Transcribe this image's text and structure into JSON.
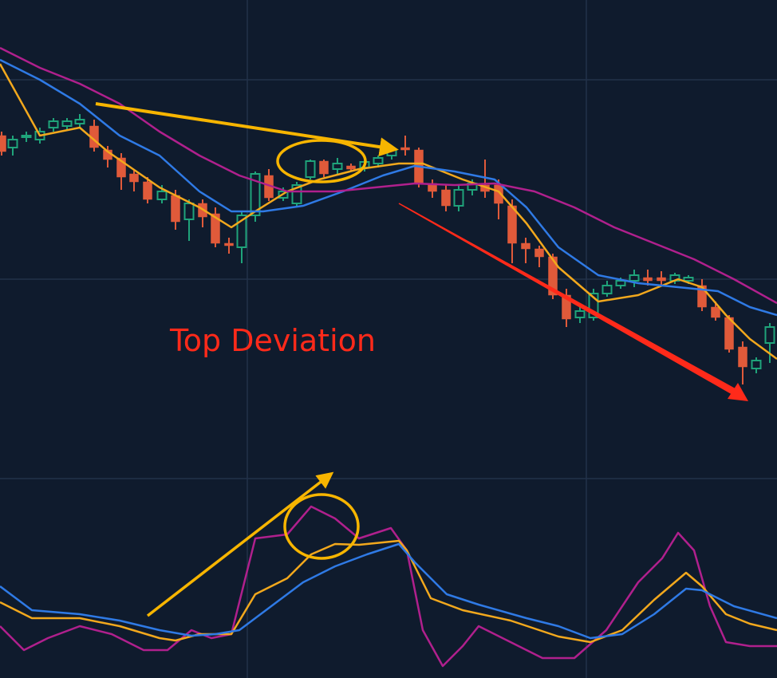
{
  "chart_data": [
    {
      "type": "candlestick",
      "annotation": "Top Deviation",
      "xlim": [
        0,
        974
      ],
      "ylim": [
        0,
        56
      ],
      "up_color": "#1fa37a",
      "down_color": "#e05a3a",
      "x": [
        2,
        16,
        33,
        50,
        67,
        84,
        100,
        118,
        135,
        152,
        168,
        185,
        203,
        220,
        237,
        254,
        270,
        287,
        303,
        320,
        337,
        355,
        372,
        389,
        406,
        423,
        440,
        457,
        474,
        491,
        508,
        525,
        542,
        559,
        575,
        592,
        608,
        625,
        642,
        659,
        676,
        693,
        710,
        727,
        744,
        761,
        778,
        795,
        812,
        829,
        846,
        863,
        880,
        897,
        914,
        931,
        948,
        965
      ],
      "open": [
        39,
        37.5,
        38.8,
        38.5,
        40,
        40.2,
        40.5,
        40.2,
        37.2,
        36.2,
        34.2,
        33.2,
        31,
        31.5,
        28.5,
        30.5,
        29.2,
        25.5,
        25,
        29,
        34,
        31.2,
        30.5,
        33.8,
        35.8,
        34.8,
        35.2,
        35,
        35.5,
        36.5,
        37.5,
        37.2,
        33,
        32.2,
        30.2,
        32.2,
        32.8,
        32.8,
        30.2,
        25.5,
        24.8,
        23.8,
        19,
        16.2,
        16.2,
        19.2,
        20.2,
        20.8,
        21.2,
        21.2,
        20.8,
        20.8,
        20.2,
        17.5,
        16.2,
        12.5,
        9.8,
        13
      ],
      "close": [
        37,
        38.5,
        39,
        39.5,
        40.8,
        40.8,
        41,
        37.5,
        36,
        33.8,
        33.2,
        31,
        32,
        28.2,
        30.5,
        28.8,
        25.5,
        25.2,
        29,
        34.2,
        31.2,
        32,
        32.8,
        35.8,
        34.2,
        35.5,
        34.8,
        35.7,
        36.2,
        37.2,
        37.2,
        33,
        32,
        30.2,
        32.2,
        33,
        32,
        30.5,
        25.5,
        24.8,
        23.8,
        19,
        16,
        17,
        19.2,
        20.2,
        20.8,
        21.5,
        20.8,
        20.8,
        21.5,
        21.2,
        17.5,
        16.2,
        12.2,
        10,
        10.8,
        15
      ],
      "high": [
        39.5,
        39,
        39.5,
        40,
        41.2,
        41.2,
        41.7,
        41,
        37.7,
        36.8,
        34.8,
        33.8,
        32.8,
        32.2,
        31,
        31,
        30,
        26.2,
        29.5,
        34.5,
        34.8,
        32.5,
        33.2,
        36,
        36,
        36.2,
        35.5,
        36.2,
        36.5,
        37.5,
        39,
        37.5,
        33.5,
        32.8,
        32.8,
        33.5,
        36,
        33.5,
        31,
        26.2,
        25.2,
        24.2,
        19.8,
        17.5,
        19.8,
        20.8,
        21.2,
        22.2,
        22.2,
        22,
        21.8,
        21.5,
        21,
        18.2,
        16.5,
        13.2,
        11.2,
        15.5
      ],
      "low": [
        36.5,
        36.5,
        38.2,
        38,
        39.5,
        39.8,
        40,
        37,
        35,
        32.2,
        32,
        30.5,
        30.5,
        27.2,
        25.8,
        27.5,
        25,
        24.2,
        23,
        28.2,
        30.8,
        30.8,
        30.2,
        33.5,
        33.8,
        34.2,
        34.5,
        34.5,
        35,
        36,
        36.5,
        32.5,
        31.2,
        29.5,
        29.5,
        31.5,
        31.2,
        28.5,
        23,
        23,
        22.5,
        18.5,
        15,
        15.5,
        15.8,
        18.8,
        19.8,
        20,
        20.2,
        20.2,
        20.4,
        20.4,
        17,
        15.8,
        11.8,
        7.8,
        9.2,
        10.5
      ],
      "series": [
        {
          "color": "#f2a81d",
          "x": [
            0,
            50,
            100,
            135,
            200,
            250,
            290,
            320,
            360,
            400,
            450,
            500,
            530,
            580,
            625,
            660,
            700,
            750,
            800,
            850,
            880,
            910,
            940,
            974
          ],
          "values": [
            48,
            39,
            40,
            37,
            32.5,
            30,
            27.5,
            29.5,
            32,
            33.5,
            34.8,
            35.5,
            35.5,
            33.5,
            32,
            28,
            22.5,
            18.2,
            19,
            21,
            20,
            16.5,
            13.5,
            11
          ]
        },
        {
          "color": "#2f7ae5",
          "x": [
            0,
            50,
            100,
            150,
            200,
            250,
            290,
            330,
            380,
            430,
            480,
            520,
            570,
            620,
            660,
            700,
            750,
            800,
            850,
            900,
            940,
            974
          ],
          "values": [
            48.5,
            46,
            43,
            39,
            36.5,
            32,
            29.5,
            29.5,
            30.2,
            32,
            34,
            35.2,
            34.5,
            33.5,
            30,
            25,
            21.5,
            20.5,
            20,
            19.5,
            17.5,
            16.5
          ]
        },
        {
          "color": "#b0208d",
          "x": [
            0,
            50,
            100,
            150,
            200,
            250,
            300,
            360,
            420,
            470,
            520,
            570,
            620,
            670,
            720,
            770,
            820,
            870,
            920,
            974
          ],
          "values": [
            50,
            47.5,
            45.5,
            43,
            39.5,
            36.5,
            34,
            32,
            32,
            32.5,
            33,
            32.8,
            33,
            32,
            30,
            27.5,
            25.5,
            23.5,
            21,
            18
          ]
        }
      ]
    },
    {
      "type": "line",
      "xlim": [
        0,
        974
      ],
      "ylim": [
        0,
        29
      ],
      "series": [
        {
          "color": "#b0208d",
          "x": [
            0,
            30,
            60,
            100,
            140,
            180,
            210,
            240,
            265,
            290,
            320,
            360,
            390,
            420,
            450,
            490,
            510,
            530,
            555,
            580,
            600,
            640,
            680,
            720,
            760,
            800,
            830,
            850,
            870,
            890,
            910,
            940,
            974
          ],
          "values": [
            6.5,
            3.5,
            5,
            6.5,
            5.5,
            3.5,
            3.5,
            6,
            5,
            5.5,
            17.5,
            18,
            21.5,
            20,
            17.5,
            18.8,
            16,
            6,
            1.5,
            4,
            6.5,
            4.5,
            2.5,
            2.5,
            6,
            12,
            15,
            18.2,
            16,
            9,
            4.5,
            4,
            4
          ]
        },
        {
          "color": "#f2a81d",
          "x": [
            0,
            40,
            100,
            150,
            200,
            220,
            250,
            290,
            320,
            360,
            390,
            420,
            450,
            500,
            510,
            540,
            580,
            640,
            700,
            740,
            780,
            820,
            860,
            880,
            910,
            940,
            974
          ],
          "values": [
            9.5,
            7.5,
            7.5,
            6.5,
            5,
            4.7,
            5.5,
            5.5,
            10.5,
            12.5,
            15.5,
            16.8,
            16.7,
            17.2,
            16,
            10,
            8.5,
            7.2,
            5.2,
            4.5,
            6,
            9.8,
            13.2,
            11.5,
            8,
            6.8,
            6
          ]
        },
        {
          "color": "#2f7ae5",
          "x": [
            0,
            40,
            100,
            150,
            200,
            240,
            270,
            300,
            340,
            380,
            420,
            460,
            500,
            520,
            560,
            600,
            660,
            700,
            740,
            780,
            820,
            860,
            880,
            920,
            974
          ],
          "values": [
            11.5,
            8.5,
            8,
            7.2,
            6,
            5.3,
            5.5,
            6,
            9,
            12,
            14,
            15.5,
            16.8,
            14.5,
            10.5,
            9.2,
            7.5,
            6.5,
            5,
            5.5,
            8,
            11.2,
            11,
            9,
            7.5
          ]
        }
      ]
    }
  ]
}
